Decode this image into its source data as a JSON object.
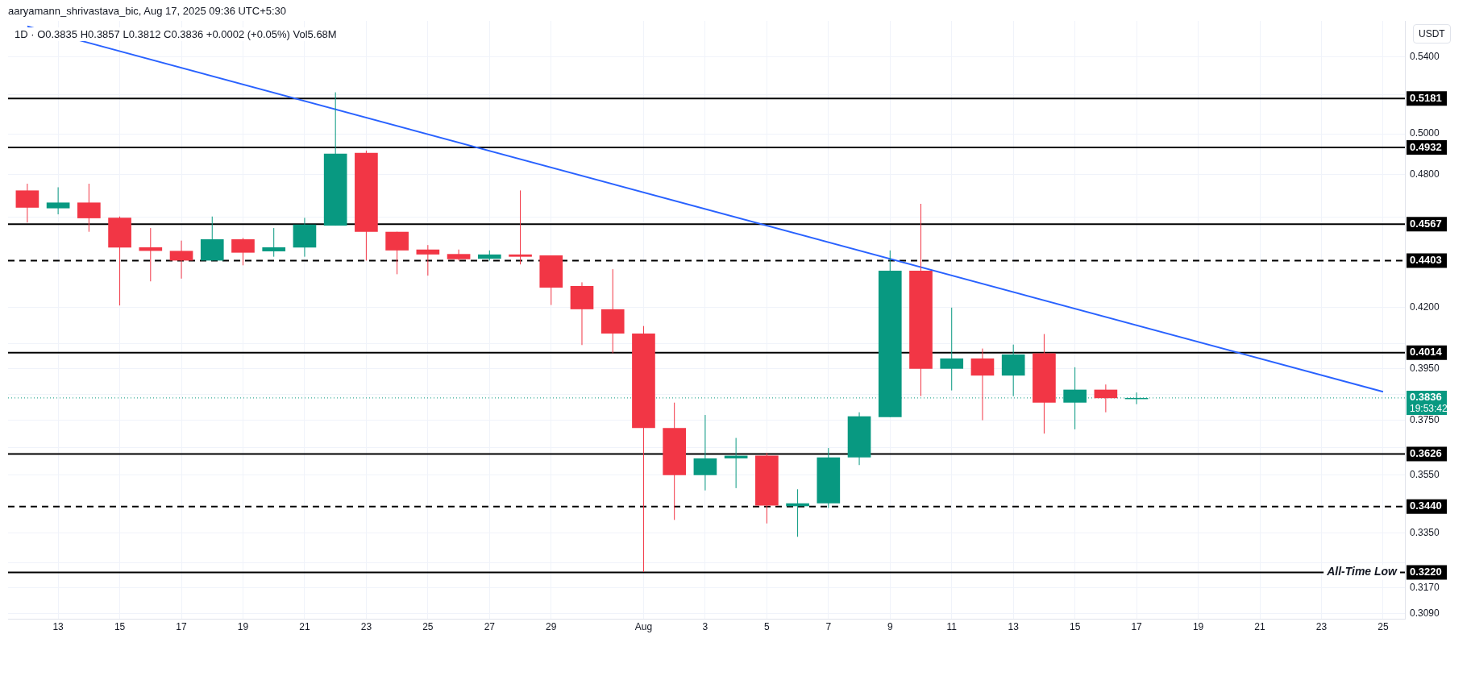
{
  "chart_data": {
    "type": "candlestick",
    "title": "1D · O0.3835 H0.3857 L0.3812 C0.3836 +0.0002 (+0.05%) Vol5.68M",
    "ylabel": "USDT",
    "annotations": [
      "aaryamann_shrivastava_bic, Aug 17, 2025 09:36 UTC+5:30",
      "19:53:42",
      "All-Time Low"
    ],
    "series": [
      {
        "x": [
          "2025-07-12",
          "2025-07-13",
          "2025-07-14",
          "2025-07-15",
          "2025-07-16",
          "2025-07-17",
          "2025-07-18",
          "2025-07-19",
          "2025-07-20",
          "2025-07-21",
          "2025-07-22",
          "2025-07-23",
          "2025-07-24",
          "2025-07-25",
          "2025-07-26",
          "2025-07-27",
          "2025-07-28",
          "2025-07-29",
          "2025-07-30",
          "2025-07-31",
          "2025-08-01",
          "2025-08-02",
          "2025-08-03",
          "2025-08-04",
          "2025-08-05",
          "2025-08-06",
          "2025-08-07",
          "2025-08-08",
          "2025-08-09",
          "2025-08-10",
          "2025-08-11",
          "2025-08-12",
          "2025-08-13",
          "2025-08-14",
          "2025-08-15",
          "2025-08-16",
          "2025-08-17"
        ],
        "ohlc": [
          [
            0.4724,
            0.4756,
            0.4574,
            0.4643
          ],
          [
            0.464,
            0.4739,
            0.4612,
            0.4667
          ],
          [
            0.4667,
            0.4756,
            0.4532,
            0.4594
          ],
          [
            0.4596,
            0.4602,
            0.4209,
            0.4461
          ],
          [
            0.4462,
            0.4549,
            0.4312,
            0.4446
          ],
          [
            0.4446,
            0.4492,
            0.4324,
            0.4403
          ],
          [
            0.4403,
            0.4602,
            0.4403,
            0.4498
          ],
          [
            0.4498,
            0.4504,
            0.4382,
            0.4438
          ],
          [
            0.4444,
            0.4549,
            0.442,
            0.4462
          ],
          [
            0.4461,
            0.4596,
            0.442,
            0.4565
          ],
          [
            0.456,
            0.5213,
            0.456,
            0.4902
          ],
          [
            0.4906,
            0.4917,
            0.4403,
            0.4532
          ],
          [
            0.4532,
            0.4532,
            0.4343,
            0.4448
          ],
          [
            0.4452,
            0.4472,
            0.4337,
            0.443
          ],
          [
            0.4432,
            0.4452,
            0.4403,
            0.4409
          ],
          [
            0.4411,
            0.4448,
            0.4403,
            0.443
          ],
          [
            0.443,
            0.4724,
            0.4386,
            0.442
          ],
          [
            0.4426,
            0.4426,
            0.4211,
            0.4285
          ],
          [
            0.4292,
            0.4308,
            0.4045,
            0.4193
          ],
          [
            0.4193,
            0.4365,
            0.4012,
            0.4092
          ],
          [
            0.4092,
            0.4123,
            0.3221,
            0.3722
          ],
          [
            0.3722,
            0.3818,
            0.3394,
            0.355
          ],
          [
            0.355,
            0.3771,
            0.3496,
            0.361
          ],
          [
            0.361,
            0.3685,
            0.3504,
            0.362
          ],
          [
            0.362,
            0.363,
            0.3382,
            0.3443
          ],
          [
            0.3441,
            0.35,
            0.3337,
            0.3451
          ],
          [
            0.3451,
            0.3648,
            0.3435,
            0.3614
          ],
          [
            0.3614,
            0.3781,
            0.3586,
            0.3766
          ],
          [
            0.3763,
            0.4448,
            0.3763,
            0.4358
          ],
          [
            0.4358,
            0.4661,
            0.3843,
            0.395
          ],
          [
            0.395,
            0.42,
            0.3865,
            0.3991
          ],
          [
            0.3991,
            0.4031,
            0.3751,
            0.3923
          ],
          [
            0.3923,
            0.4047,
            0.3843,
            0.4007
          ],
          [
            0.4012,
            0.409,
            0.3701,
            0.3818
          ],
          [
            0.3818,
            0.3956,
            0.3717,
            0.3868
          ],
          [
            0.3868,
            0.3888,
            0.3781,
            0.3835
          ],
          [
            0.3835,
            0.3857,
            0.3812,
            0.3836
          ]
        ],
        "colors": [
          "#f23645",
          "#089981",
          "#f23645",
          "#f23645",
          "#f23645",
          "#f23645",
          "#089981",
          "#f23645",
          "#089981",
          "#089981",
          "#089981",
          "#f23645",
          "#f23645",
          "#f23645",
          "#f23645",
          "#089981",
          "#f23645",
          "#f23645",
          "#f23645",
          "#f23645",
          "#f23645",
          "#f23645",
          "#089981",
          "#089981",
          "#f23645",
          "#089981",
          "#089981",
          "#089981",
          "#089981",
          "#f23645",
          "#089981",
          "#f23645",
          "#089981",
          "#f23645",
          "#089981",
          "#f23645",
          "#089981"
        ]
      },
      {
        "type": "line",
        "x": [
          "2025-07-12",
          "2025-08-25"
        ],
        "values": [
          0.557,
          0.386
        ],
        "color": "#2962ff"
      }
    ],
    "xlim": [
      "2025-07-11T09:00",
      "2025-08-25T17:00"
    ],
    "xticks": [
      {
        "value": "2025-07-13",
        "label": "13"
      },
      {
        "value": "2025-07-15",
        "label": "15"
      },
      {
        "value": "2025-07-17",
        "label": "17"
      },
      {
        "value": "2025-07-19",
        "label": "19"
      },
      {
        "value": "2025-07-21",
        "label": "21"
      },
      {
        "value": "2025-07-23",
        "label": "23"
      },
      {
        "value": "2025-07-25",
        "label": "25"
      },
      {
        "value": "2025-07-27",
        "label": "27"
      },
      {
        "value": "2025-07-29",
        "label": "29"
      },
      {
        "value": "2025-08-01",
        "label": "Aug"
      },
      {
        "value": "2025-08-03",
        "label": "3"
      },
      {
        "value": "2025-08-05",
        "label": "5"
      },
      {
        "value": "2025-08-07",
        "label": "7"
      },
      {
        "value": "2025-08-09",
        "label": "9"
      },
      {
        "value": "2025-08-11",
        "label": "11"
      },
      {
        "value": "2025-08-13",
        "label": "13"
      },
      {
        "value": "2025-08-15",
        "label": "15"
      },
      {
        "value": "2025-08-17",
        "label": "17"
      },
      {
        "value": "2025-08-19",
        "label": "19"
      },
      {
        "value": "2025-08-21",
        "label": "21"
      },
      {
        "value": "2025-08-23",
        "label": "23"
      },
      {
        "value": "2025-08-25",
        "label": "25"
      }
    ],
    "ylim": [
      0.3072,
      0.56
    ],
    "yticks": [
      {
        "value": 0.54,
        "label": "0.5400"
      },
      {
        "value": 0.52,
        "label": null
      },
      {
        "value": 0.5,
        "label": "0.5000"
      },
      {
        "value": 0.48,
        "label": "0.4800"
      },
      {
        "value": 0.46,
        "label": null
      },
      {
        "value": 0.42,
        "label": "0.4200"
      },
      {
        "value": 0.405,
        "label": null
      },
      {
        "value": 0.395,
        "label": "0.3950"
      },
      {
        "value": 0.385,
        "label": null
      },
      {
        "value": 0.375,
        "label": "0.3750"
      },
      {
        "value": 0.365,
        "label": null
      },
      {
        "value": 0.355,
        "label": "0.3550"
      },
      {
        "value": 0.335,
        "label": "0.3350"
      },
      {
        "value": 0.325,
        "label": null
      },
      {
        "value": 0.317,
        "label": "0.3170"
      },
      {
        "value": 0.309,
        "label": "0.3090"
      }
    ],
    "log": "y",
    "grid": true,
    "legend": false,
    "ref_lines": [
      {
        "axis": "y",
        "value": 0.5181,
        "label": "0.5181",
        "color": "#000000",
        "line_style": "solid"
      },
      {
        "axis": "y",
        "value": 0.4932,
        "label": "0.4932",
        "color": "#000000",
        "line_style": "solid"
      },
      {
        "axis": "y",
        "value": 0.4567,
        "label": "0.4567",
        "color": "#000000",
        "line_style": "solid"
      },
      {
        "axis": "y",
        "value": 0.4403,
        "label": "0.4403",
        "color": "#000000",
        "line_style": "dashed"
      },
      {
        "axis": "y",
        "value": 0.4014,
        "label": "0.4014",
        "color": "#000000",
        "line_style": "solid"
      },
      {
        "axis": "y",
        "value": 0.3836,
        "label": "0.3836",
        "color": "#089981",
        "line_style": "dotted"
      },
      {
        "axis": "y",
        "value": 0.3626,
        "label": "0.3626",
        "color": "#000000",
        "line_style": "solid"
      },
      {
        "axis": "y",
        "value": 0.344,
        "label": "0.3440",
        "color": "#000000",
        "line_style": "dashed"
      },
      {
        "axis": "y",
        "value": 0.322,
        "label": "0.3220",
        "color": "#000000",
        "line_style": "solid"
      }
    ]
  }
}
